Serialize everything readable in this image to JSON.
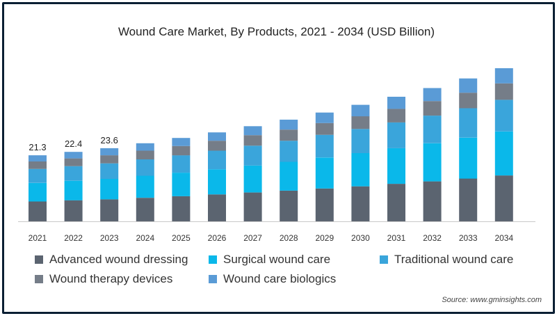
{
  "chart_data": {
    "type": "bar",
    "stacked": true,
    "title": "Wound Care Market, By Products, 2021 - 2034 (USD Billion)",
    "xlabel": "",
    "ylabel": "",
    "categories": [
      "2021",
      "2022",
      "2023",
      "2024",
      "2025",
      "2026",
      "2027",
      "2028",
      "2029",
      "2030",
      "2031",
      "2032",
      "2033",
      "2034"
    ],
    "totals": [
      21.3,
      22.4,
      23.6,
      25.2,
      26.9,
      28.7,
      30.7,
      32.8,
      35.1,
      37.6,
      40.2,
      43.0,
      46.1,
      49.4
    ],
    "total_labels": [
      "21.3",
      "22.4",
      "23.6"
    ],
    "series": [
      {
        "name": "Advanced wound dressing",
        "color": "#5b6470",
        "values": [
          6.4,
          6.8,
          7.1,
          7.6,
          8.1,
          8.7,
          9.3,
          9.9,
          10.6,
          11.3,
          12.1,
          12.9,
          13.8,
          14.8
        ]
      },
      {
        "name": "Surgical wound care",
        "color": "#0ab8ea",
        "values": [
          6.0,
          6.3,
          6.6,
          7.1,
          7.6,
          8.1,
          8.7,
          9.3,
          10.0,
          10.7,
          11.5,
          12.3,
          13.2,
          14.2
        ]
      },
      {
        "name": "Traditional wound care",
        "color": "#3aa5db",
        "values": [
          4.5,
          4.7,
          5.0,
          5.3,
          5.6,
          6.0,
          6.4,
          6.8,
          7.3,
          7.8,
          8.3,
          8.9,
          9.5,
          10.2
        ]
      },
      {
        "name": "Wound therapy devices",
        "color": "#757d88",
        "values": [
          2.4,
          2.5,
          2.6,
          2.8,
          3.0,
          3.2,
          3.4,
          3.6,
          3.8,
          4.1,
          4.4,
          4.7,
          5.0,
          5.3
        ]
      },
      {
        "name": "Wound care biologics",
        "color": "#5a9bd6",
        "values": [
          2.0,
          2.1,
          2.3,
          2.4,
          2.6,
          2.7,
          2.9,
          3.2,
          3.4,
          3.7,
          3.9,
          4.2,
          4.6,
          4.9
        ]
      }
    ],
    "ylim": [
      0,
      49.4
    ],
    "grid": false,
    "legend_position": "bottom"
  },
  "source": "Source: www.gminsights.com"
}
